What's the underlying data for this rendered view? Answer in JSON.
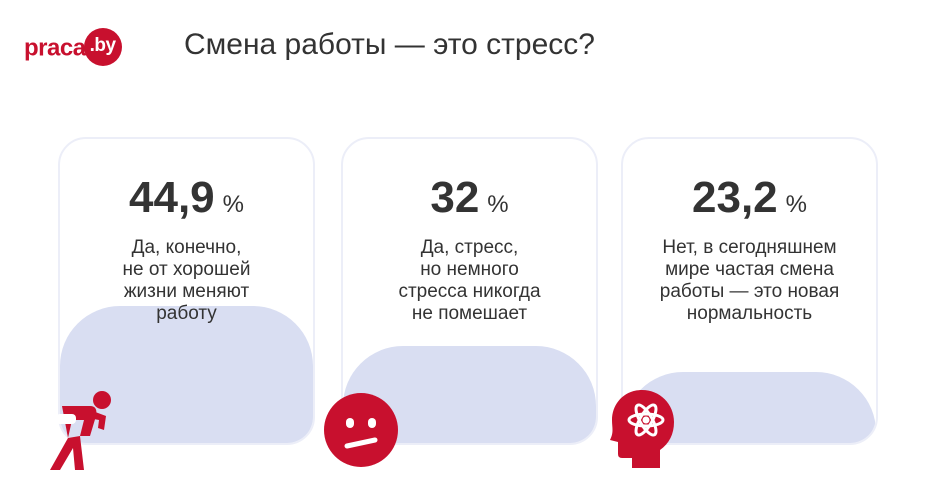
{
  "logo": {
    "text": "praca",
    "badge": ".by"
  },
  "title": "Смена работы — это стресс?",
  "colors": {
    "accent": "#c8102e",
    "fill": "#d9def2",
    "card_border": "#eceef8",
    "text": "#333333"
  },
  "chart_data": {
    "type": "bar",
    "unit": "%",
    "categories": [
      "Да, конечно,\nне от хорошей\nжизни меняют\nработу",
      "Да, стресс,\nно немного\nстресса никогда\nне помешает",
      "Нет, в сегодняшнем\nмире частая смена\nработы — это новая\nнормальность"
    ],
    "values": [
      44.9,
      32,
      23.2
    ],
    "value_labels": [
      "44,9",
      "32",
      "23,2"
    ],
    "icons": [
      "tired-person-icon",
      "uneasy-face-icon",
      "atom-head-icon"
    ]
  }
}
